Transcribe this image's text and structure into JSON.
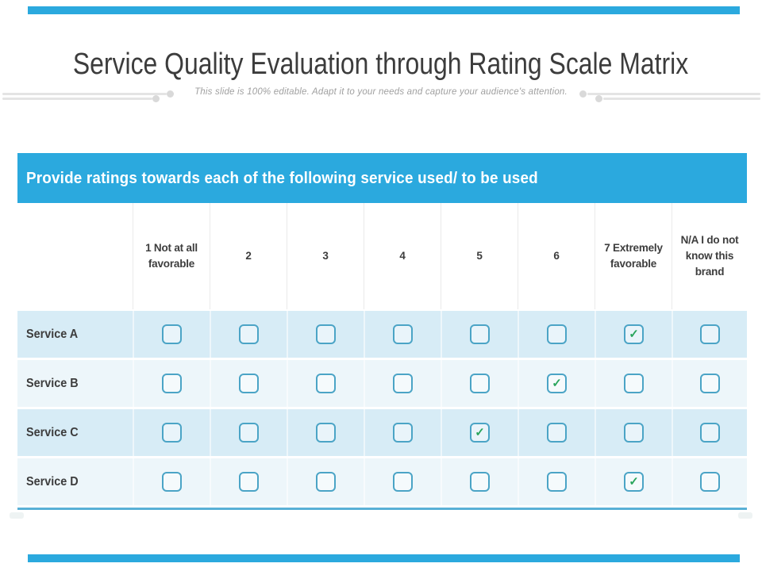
{
  "slide": {
    "title": "Service Quality Evaluation through Rating Scale Matrix",
    "subtitle": "This slide is 100% editable. Adapt it to your needs and capture your audience's attention."
  },
  "table": {
    "banner": "Provide ratings towards each of the following service used/ to be used",
    "columns": [
      "1 Not at all favorable",
      "2",
      "3",
      "4",
      "5",
      "6",
      "7 Extremely favorable",
      "N/A I do not know this brand"
    ],
    "rows": [
      {
        "label": "Service A",
        "checks": [
          false,
          false,
          false,
          false,
          false,
          false,
          true,
          false
        ]
      },
      {
        "label": "Service B",
        "checks": [
          false,
          false,
          false,
          false,
          false,
          true,
          false,
          false
        ]
      },
      {
        "label": "Service C",
        "checks": [
          false,
          false,
          false,
          false,
          true,
          false,
          false,
          false
        ]
      },
      {
        "label": "Service D",
        "checks": [
          false,
          false,
          false,
          false,
          false,
          false,
          true,
          false
        ]
      }
    ]
  },
  "icons": {
    "check": "✓"
  },
  "colors": {
    "accent_blue": "#2BA9DE",
    "row_blue": "#D7ECF6",
    "row_light": "#EDF6FA",
    "checkbox_border": "#4BA4C6",
    "check_green": "#2AA55C",
    "table_bottom_border": "#58B0D6",
    "title_text": "#3C3C3C",
    "subtitle_text": "#A0A0A0",
    "header_text": "#3D3D3D"
  }
}
